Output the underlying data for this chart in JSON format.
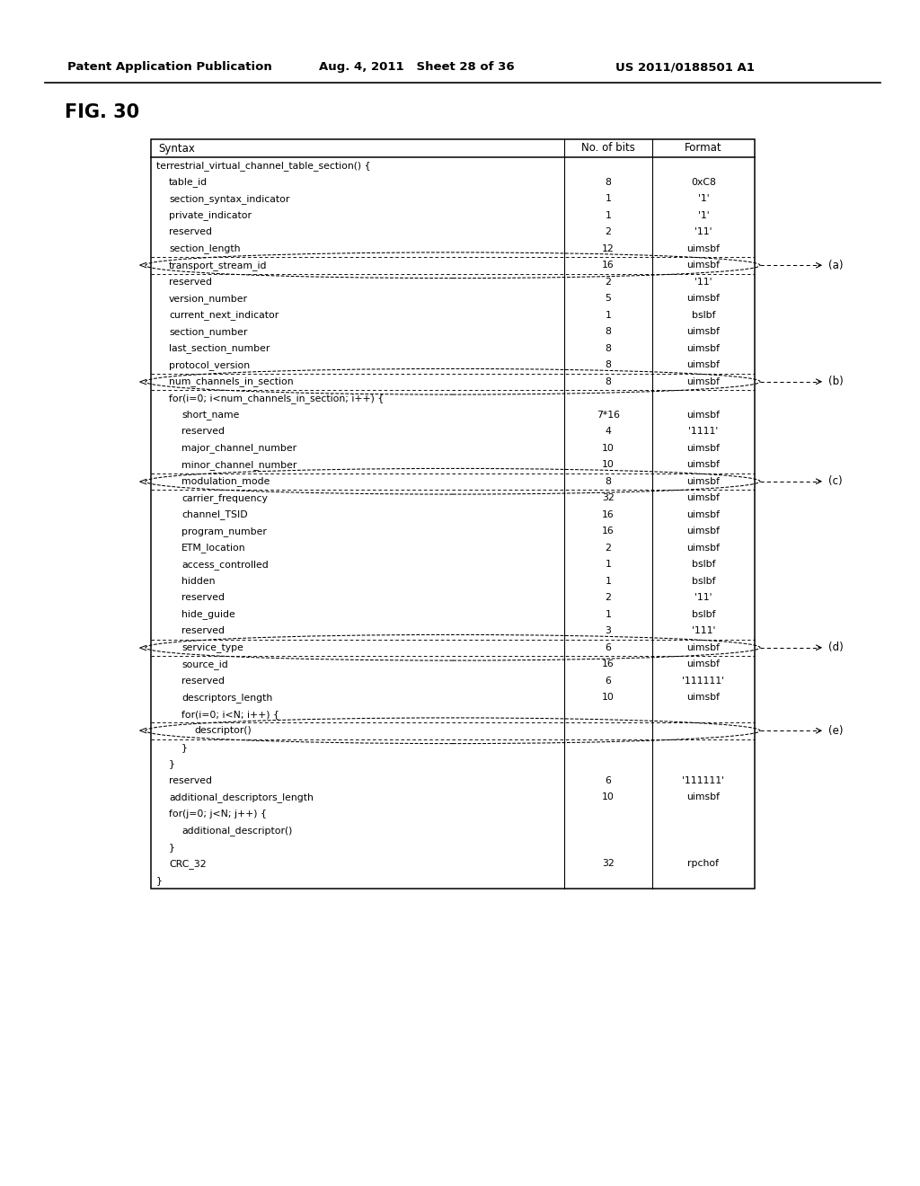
{
  "title": "FIG. 30",
  "header_line1": "Patent Application Publication",
  "header_date": "Aug. 4, 2011   Sheet 28 of 36",
  "header_pub": "US 2011/0188501 A1",
  "col_headers": [
    "Syntax",
    "No. of bits",
    "Format"
  ],
  "rows": [
    {
      "indent": 0,
      "text": "terrestrial_virtual_channel_table_section() {",
      "bits": "",
      "format": "",
      "dashed_above": false,
      "arrow_label": ""
    },
    {
      "indent": 1,
      "text": "table_id",
      "bits": "8",
      "format": "0xC8",
      "dashed_above": false,
      "arrow_label": ""
    },
    {
      "indent": 1,
      "text": "section_syntax_indicator",
      "bits": "1",
      "format": "'1'",
      "dashed_above": false,
      "arrow_label": ""
    },
    {
      "indent": 1,
      "text": "private_indicator",
      "bits": "1",
      "format": "'1'",
      "dashed_above": false,
      "arrow_label": ""
    },
    {
      "indent": 1,
      "text": "reserved",
      "bits": "2",
      "format": "'11'",
      "dashed_above": false,
      "arrow_label": ""
    },
    {
      "indent": 1,
      "text": "section_length",
      "bits": "12",
      "format": "uimsbf",
      "dashed_above": false,
      "arrow_label": ""
    },
    {
      "indent": 1,
      "text": "transport_stream_id",
      "bits": "16",
      "format": "uimsbf",
      "dashed_above": true,
      "arrow_label": "(a)"
    },
    {
      "indent": 1,
      "text": "reserved",
      "bits": "2",
      "format": "'11'",
      "dashed_above": true,
      "arrow_label": ""
    },
    {
      "indent": 1,
      "text": "version_number",
      "bits": "5",
      "format": "uimsbf",
      "dashed_above": false,
      "arrow_label": ""
    },
    {
      "indent": 1,
      "text": "current_next_indicator",
      "bits": "1",
      "format": "bslbf",
      "dashed_above": false,
      "arrow_label": ""
    },
    {
      "indent": 1,
      "text": "section_number",
      "bits": "8",
      "format": "uimsbf",
      "dashed_above": false,
      "arrow_label": ""
    },
    {
      "indent": 1,
      "text": "last_section_number",
      "bits": "8",
      "format": "uimsbf",
      "dashed_above": false,
      "arrow_label": ""
    },
    {
      "indent": 1,
      "text": "protocol_version",
      "bits": "8",
      "format": "uimsbf",
      "dashed_above": false,
      "arrow_label": ""
    },
    {
      "indent": 1,
      "text": "num_channels_in_section",
      "bits": "8",
      "format": "uimsbf",
      "dashed_above": true,
      "arrow_label": "(b)"
    },
    {
      "indent": 1,
      "text": "for(i=0; i<num_channels_in_section; i++) {",
      "bits": "",
      "format": "",
      "dashed_above": true,
      "arrow_label": ""
    },
    {
      "indent": 2,
      "text": "short_name",
      "bits": "7*16",
      "format": "uimsbf",
      "dashed_above": false,
      "arrow_label": ""
    },
    {
      "indent": 2,
      "text": "reserved",
      "bits": "4",
      "format": "'1111'",
      "dashed_above": false,
      "arrow_label": ""
    },
    {
      "indent": 2,
      "text": "major_channel_number",
      "bits": "10",
      "format": "uimsbf",
      "dashed_above": false,
      "arrow_label": ""
    },
    {
      "indent": 2,
      "text": "minor_channel_number",
      "bits": "10",
      "format": "uimsbf",
      "dashed_above": false,
      "arrow_label": ""
    },
    {
      "indent": 2,
      "text": "modulation_mode",
      "bits": "8",
      "format": "uimsbf",
      "dashed_above": true,
      "arrow_label": "(c)"
    },
    {
      "indent": 2,
      "text": "carrier_frequency",
      "bits": "32",
      "format": "uimsbf",
      "dashed_above": true,
      "arrow_label": ""
    },
    {
      "indent": 2,
      "text": "channel_TSID",
      "bits": "16",
      "format": "uimsbf",
      "dashed_above": false,
      "arrow_label": ""
    },
    {
      "indent": 2,
      "text": "program_number",
      "bits": "16",
      "format": "uimsbf",
      "dashed_above": false,
      "arrow_label": ""
    },
    {
      "indent": 2,
      "text": "ETM_location",
      "bits": "2",
      "format": "uimsbf",
      "dashed_above": false,
      "arrow_label": ""
    },
    {
      "indent": 2,
      "text": "access_controlled",
      "bits": "1",
      "format": "bslbf",
      "dashed_above": false,
      "arrow_label": ""
    },
    {
      "indent": 2,
      "text": "hidden",
      "bits": "1",
      "format": "bslbf",
      "dashed_above": false,
      "arrow_label": ""
    },
    {
      "indent": 2,
      "text": "reserved",
      "bits": "2",
      "format": "'11'",
      "dashed_above": false,
      "arrow_label": ""
    },
    {
      "indent": 2,
      "text": "hide_guide",
      "bits": "1",
      "format": "bslbf",
      "dashed_above": false,
      "arrow_label": ""
    },
    {
      "indent": 2,
      "text": "reserved",
      "bits": "3",
      "format": "'111'",
      "dashed_above": false,
      "arrow_label": ""
    },
    {
      "indent": 2,
      "text": "service_type",
      "bits": "6",
      "format": "uimsbf",
      "dashed_above": true,
      "arrow_label": "(d)"
    },
    {
      "indent": 2,
      "text": "source_id",
      "bits": "16",
      "format": "uimsbf",
      "dashed_above": true,
      "arrow_label": ""
    },
    {
      "indent": 2,
      "text": "reserved",
      "bits": "6",
      "format": "'111111'",
      "dashed_above": false,
      "arrow_label": ""
    },
    {
      "indent": 2,
      "text": "descriptors_length",
      "bits": "10",
      "format": "uimsbf",
      "dashed_above": false,
      "arrow_label": ""
    },
    {
      "indent": 2,
      "text": "for(i=0; i<N; i++) {",
      "bits": "",
      "format": "",
      "dashed_above": false,
      "arrow_label": ""
    },
    {
      "indent": 3,
      "text": "descriptor()",
      "bits": "",
      "format": "",
      "dashed_above": true,
      "arrow_label": "(e)"
    },
    {
      "indent": 2,
      "text": "}",
      "bits": "",
      "format": "",
      "dashed_above": true,
      "arrow_label": ""
    },
    {
      "indent": 1,
      "text": "}",
      "bits": "",
      "format": "",
      "dashed_above": false,
      "arrow_label": ""
    },
    {
      "indent": 1,
      "text": "reserved",
      "bits": "6",
      "format": "'111111'",
      "dashed_above": false,
      "arrow_label": ""
    },
    {
      "indent": 1,
      "text": "additional_descriptors_length",
      "bits": "10",
      "format": "uimsbf",
      "dashed_above": false,
      "arrow_label": ""
    },
    {
      "indent": 1,
      "text": "for(j=0; j<N; j++) {",
      "bits": "",
      "format": "",
      "dashed_above": false,
      "arrow_label": ""
    },
    {
      "indent": 2,
      "text": "additional_descriptor()",
      "bits": "",
      "format": "",
      "dashed_above": false,
      "arrow_label": ""
    },
    {
      "indent": 1,
      "text": "}",
      "bits": "",
      "format": "",
      "dashed_above": false,
      "arrow_label": ""
    },
    {
      "indent": 1,
      "text": "CRC_32",
      "bits": "32",
      "format": "rpchof",
      "dashed_above": false,
      "arrow_label": ""
    },
    {
      "indent": 0,
      "text": "}",
      "bits": "",
      "format": "",
      "dashed_above": false,
      "arrow_label": ""
    }
  ],
  "bg_color": "#ffffff"
}
